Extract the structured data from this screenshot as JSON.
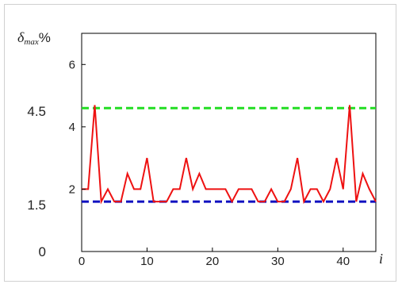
{
  "chart_data": {
    "type": "line",
    "xlabel": "i",
    "ylabel": {
      "main": "δ",
      "sub": "max",
      "suffix": "%"
    },
    "xlim": [
      0,
      45
    ],
    "ylim": [
      0,
      7
    ],
    "x_ticks": [
      "0",
      "10",
      "20",
      "30",
      "40"
    ],
    "x_tick_values": [
      0,
      10,
      20,
      30,
      40
    ],
    "y_ticks": [
      "2",
      "4",
      "6"
    ],
    "y_tick_values": [
      2,
      4,
      6
    ],
    "y_extra_labels": [
      {
        "text": "4.5",
        "value": 4.5
      },
      {
        "text": "1.5",
        "value": 1.5
      },
      {
        "text": "0",
        "value": 0
      }
    ],
    "reference_lines": [
      {
        "value": 4.6,
        "color": "#22dd22"
      },
      {
        "value": 1.6,
        "color": "#1010c0"
      }
    ],
    "series": [
      {
        "color": "#ee1111",
        "x": [
          0,
          1,
          2,
          3,
          4,
          5,
          6,
          7,
          8,
          9,
          10,
          11,
          12,
          13,
          14,
          15,
          16,
          17,
          18,
          19,
          20,
          21,
          22,
          23,
          24,
          25,
          26,
          27,
          28,
          29,
          30,
          31,
          32,
          33,
          34,
          35,
          36,
          37,
          38,
          39,
          40,
          41,
          42,
          43,
          44,
          45
        ],
        "y": [
          2.0,
          2.0,
          4.7,
          1.6,
          2.0,
          1.6,
          1.6,
          2.5,
          2.0,
          2.0,
          3.0,
          1.6,
          1.6,
          1.6,
          2.0,
          2.0,
          3.0,
          2.0,
          2.5,
          2.0,
          2.0,
          2.0,
          2.0,
          1.6,
          2.0,
          2.0,
          2.0,
          1.6,
          1.6,
          2.0,
          1.6,
          1.6,
          2.0,
          3.0,
          1.6,
          2.0,
          2.0,
          1.6,
          2.0,
          3.0,
          2.0,
          4.7,
          1.6,
          2.5,
          2.0,
          1.6
        ]
      }
    ]
  }
}
